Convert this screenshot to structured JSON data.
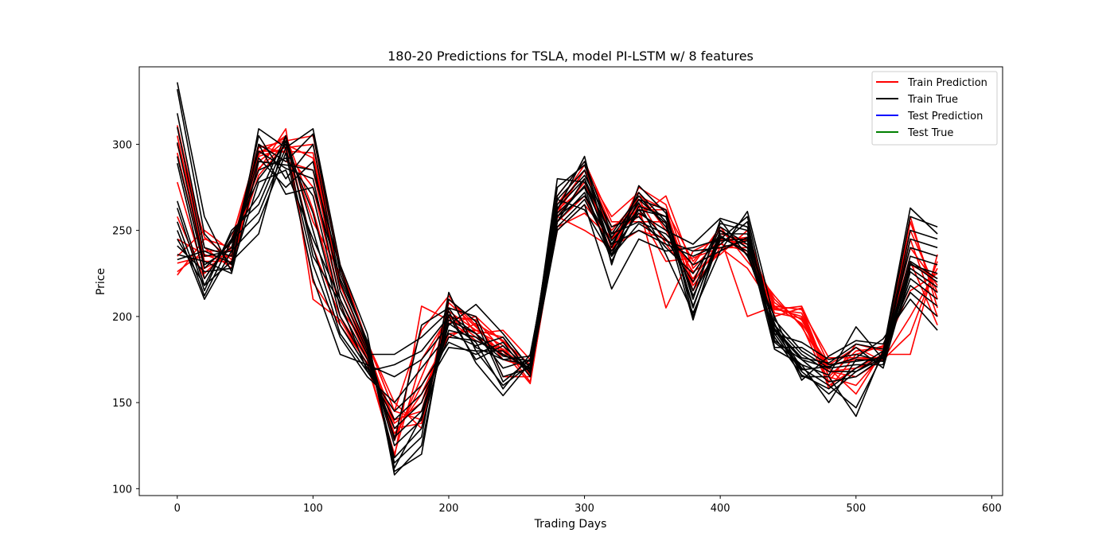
{
  "chart_data": {
    "type": "line",
    "title": "180-20 Predictions for TSLA, model PI-LSTM w/ 8 features",
    "xlabel": "Trading Days",
    "ylabel": "Price",
    "xlim": [
      -28,
      608
    ],
    "ylim": [
      96,
      345
    ],
    "xticks": [
      0,
      100,
      200,
      300,
      400,
      500,
      600
    ],
    "yticks": [
      100,
      150,
      200,
      250,
      300
    ],
    "grid": false,
    "legend_position": "top-right",
    "x": [
      0,
      20,
      40,
      60,
      80,
      100,
      120,
      140,
      160,
      180,
      200,
      220,
      240,
      260,
      280,
      300,
      320,
      340,
      360,
      380,
      400,
      420,
      440,
      460,
      480,
      500,
      520,
      540,
      560
    ],
    "legend": [
      {
        "name": "Train Prediction",
        "color": "#ff0000"
      },
      {
        "name": "Train True",
        "color": "#000000"
      },
      {
        "name": "Test Prediction",
        "color": "#0000ff"
      },
      {
        "name": "Test True",
        "color": "#008000"
      }
    ],
    "series": [
      {
        "group": "Train Prediction",
        "color": "#ff0000",
        "values": [
          311,
          240,
          228,
          290,
          302,
          305,
          230,
          185,
          150,
          135,
          205,
          200,
          165,
          165,
          255,
          270,
          238,
          270,
          262,
          215,
          240,
          240,
          200,
          205,
          165,
          160,
          178,
          178,
          236
        ]
      },
      {
        "group": "Train Prediction",
        "color": "#ff0000",
        "values": [
          305,
          232,
          232,
          293,
          298,
          300,
          228,
          185,
          145,
          140,
          210,
          195,
          175,
          170,
          250,
          265,
          245,
          265,
          258,
          218,
          238,
          245,
          205,
          200,
          168,
          165,
          175,
          190,
          232
        ]
      },
      {
        "group": "Train Prediction",
        "color": "#ff0000",
        "values": [
          295,
          228,
          236,
          296,
          296,
          295,
          220,
          180,
          140,
          145,
          200,
          198,
          180,
          168,
          258,
          278,
          240,
          275,
          265,
          220,
          242,
          238,
          210,
          195,
          160,
          170,
          175,
          200,
          228
        ]
      },
      {
        "group": "Train Prediction",
        "color": "#ff0000",
        "values": [
          278,
          225,
          240,
          300,
          290,
          285,
          215,
          178,
          138,
          150,
          196,
          200,
          185,
          172,
          262,
          285,
          248,
          258,
          270,
          228,
          245,
          242,
          208,
          198,
          170,
          155,
          180,
          215,
          225
        ]
      },
      {
        "group": "Train Prediction",
        "color": "#ff0000",
        "values": [
          258,
          222,
          245,
          299,
          295,
          275,
          210,
          176,
          132,
          155,
          190,
          192,
          188,
          166,
          265,
          288,
          252,
          262,
          262,
          232,
          250,
          236,
          204,
          202,
          165,
          180,
          182,
          230,
          222
        ]
      },
      {
        "group": "Train Prediction",
        "color": "#ff0000",
        "values": [
          245,
          236,
          230,
          294,
          305,
          262,
          205,
          182,
          130,
          160,
          188,
          196,
          186,
          172,
          270,
          290,
          255,
          255,
          255,
          225,
          248,
          244,
          206,
          196,
          172,
          175,
          176,
          240,
          218
        ]
      },
      {
        "group": "Train Prediction",
        "color": "#ff0000",
        "values": [
          231,
          235,
          235,
          295,
          304,
          240,
          200,
          175,
          128,
          165,
          203,
          192,
          183,
          162,
          255,
          280,
          240,
          250,
          245,
          230,
          252,
          232,
          212,
          194,
          168,
          170,
          178,
          250,
          214
        ]
      },
      {
        "group": "Train Prediction",
        "color": "#ff0000",
        "values": [
          226,
          238,
          238,
          286,
          300,
          220,
          195,
          173,
          120,
          175,
          200,
          188,
          181,
          168,
          252,
          260,
          245,
          260,
          232,
          234,
          240,
          228,
          204,
          206,
          172,
          182,
          174,
          255,
          210
        ]
      },
      {
        "group": "Train Prediction",
        "color": "#ff0000",
        "values": [
          224,
          245,
          240,
          285,
          309,
          210,
          198,
          172,
          118,
          206,
          198,
          186,
          180,
          161,
          258,
          250,
          240,
          264,
          205,
          238,
          246,
          200,
          206,
          204,
          176,
          176,
          176,
          258,
          205
        ]
      },
      {
        "group": "Train Prediction",
        "color": "#ff0000",
        "values": [
          235,
          250,
          238,
          298,
          302,
          255,
          225,
          185,
          145,
          192,
          212,
          190,
          192,
          175,
          262,
          275,
          250,
          268,
          242,
          222,
          244,
          246,
          202,
          199,
          162,
          184,
          180,
          245,
          200
        ]
      },
      {
        "group": "Train Prediction",
        "color": "#ff0000",
        "values": [
          300,
          246,
          233,
          282,
          300,
          292,
          218,
          183,
          135,
          138,
          208,
          194,
          178,
          170,
          260,
          285,
          258,
          272,
          250,
          226,
          236,
          250,
          200,
          205,
          158,
          178,
          183,
          232,
          195
        ]
      },
      {
        "group": "Train True",
        "color": "#000000",
        "values": [
          336,
          258,
          226,
          309,
          298,
          309,
          230,
          190,
          108,
          125,
          205,
          200,
          165,
          170,
          262,
          293,
          230,
          276,
          260,
          210,
          256,
          235,
          200,
          165,
          165,
          142,
          180,
          263,
          248
        ]
      },
      {
        "group": "Train True",
        "color": "#000000",
        "values": [
          332,
          248,
          230,
          300,
          290,
          306,
          225,
          185,
          110,
          120,
          210,
          197,
          162,
          175,
          268,
          285,
          240,
          272,
          255,
          205,
          250,
          240,
          195,
          170,
          160,
          147,
          178,
          258,
          252
        ]
      },
      {
        "group": "Train True",
        "color": "#000000",
        "values": [
          318,
          240,
          235,
          305,
          280,
          300,
          220,
          182,
          115,
          130,
          214,
          180,
          160,
          172,
          255,
          280,
          236,
          268,
          262,
          200,
          246,
          238,
          190,
          168,
          155,
          168,
          176,
          250,
          245
        ]
      },
      {
        "group": "Train True",
        "color": "#000000",
        "values": [
          310,
          235,
          238,
          292,
          275,
          290,
          215,
          180,
          118,
          135,
          196,
          185,
          158,
          178,
          260,
          275,
          232,
          264,
          258,
          212,
          244,
          245,
          185,
          172,
          150,
          175,
          174,
          245,
          240
        ]
      },
      {
        "group": "Train True",
        "color": "#000000",
        "values": [
          301,
          230,
          240,
          296,
          286,
          280,
          210,
          178,
          125,
          140,
          198,
          190,
          170,
          175,
          270,
          290,
          248,
          270,
          252,
          215,
          252,
          242,
          188,
          166,
          158,
          170,
          180,
          240,
          235
        ]
      },
      {
        "group": "Train True",
        "color": "#000000",
        "values": [
          293,
          228,
          243,
          285,
          292,
          270,
          205,
          175,
          130,
          145,
          192,
          188,
          175,
          172,
          275,
          288,
          244,
          262,
          245,
          220,
          254,
          250,
          192,
          175,
          162,
          165,
          176,
          235,
          230
        ]
      },
      {
        "group": "Train True",
        "color": "#000000",
        "values": [
          289,
          222,
          245,
          280,
          300,
          260,
          200,
          172,
          135,
          150,
          188,
          186,
          178,
          170,
          265,
          282,
          252,
          258,
          240,
          225,
          248,
          248,
          195,
          178,
          168,
          168,
          178,
          230,
          225
        ]
      },
      {
        "group": "Train True",
        "color": "#000000",
        "values": [
          267,
          218,
          248,
          270,
          305,
          250,
          195,
          170,
          140,
          155,
          182,
          180,
          180,
          168,
          280,
          278,
          248,
          255,
          248,
          230,
          238,
          261,
          198,
          180,
          170,
          172,
          172,
          232,
          222
        ]
      },
      {
        "group": "Train True",
        "color": "#000000",
        "values": [
          263,
          215,
          250,
          265,
          302,
          240,
          190,
          168,
          145,
          160,
          185,
          178,
          185,
          165,
          258,
          270,
          242,
          250,
          242,
          235,
          242,
          255,
          182,
          182,
          172,
          174,
          176,
          231,
          220
        ]
      },
      {
        "group": "Train True",
        "color": "#000000",
        "values": [
          255,
          212,
          244,
          260,
          298,
          230,
          188,
          165,
          150,
          170,
          190,
          183,
          188,
          167,
          250,
          265,
          216,
          245,
          238,
          240,
          245,
          258,
          190,
          185,
          175,
          178,
          174,
          228,
          217
        ]
      },
      {
        "group": "Train True",
        "color": "#000000",
        "values": [
          250,
          210,
          238,
          255,
          295,
          222,
          178,
          172,
          165,
          175,
          195,
          207,
          190,
          170,
          252,
          268,
          238,
          260,
          250,
          242,
          257,
          252,
          186,
          175,
          170,
          182,
          170,
          226,
          214
        ]
      },
      {
        "group": "Train True",
        "color": "#000000",
        "values": [
          245,
          218,
          232,
          248,
          305,
          235,
          208,
          168,
          172,
          180,
          200,
          175,
          183,
          169,
          255,
          272,
          235,
          254,
          244,
          238,
          240,
          244,
          181,
          172,
          166,
          194,
          175,
          222,
          210
        ]
      },
      {
        "group": "Train True",
        "color": "#000000",
        "values": [
          241,
          226,
          228,
          278,
          285,
          245,
          210,
          178,
          178,
          188,
          203,
          173,
          154,
          173,
          258,
          276,
          242,
          266,
          236,
          202,
          238,
          246,
          193,
          176,
          173,
          184,
          181,
          218,
          206
        ]
      },
      {
        "group": "Train True",
        "color": "#000000",
        "values": [
          236,
          232,
          225,
          290,
          288,
          285,
          228,
          183,
          128,
          195,
          205,
          182,
          175,
          177,
          263,
          280,
          246,
          268,
          254,
          198,
          250,
          240,
          196,
          163,
          177,
          186,
          184,
          214,
          200
        ]
      },
      {
        "group": "Train True",
        "color": "#000000",
        "values": [
          233,
          238,
          231,
          300,
          271,
          275,
          222,
          186,
          112,
          142,
          201,
          190,
          177,
          174,
          268,
          262,
          235,
          262,
          258,
          206,
          247,
          236,
          192,
          169,
          171,
          176,
          187,
          210,
          192
        ]
      }
    ]
  }
}
